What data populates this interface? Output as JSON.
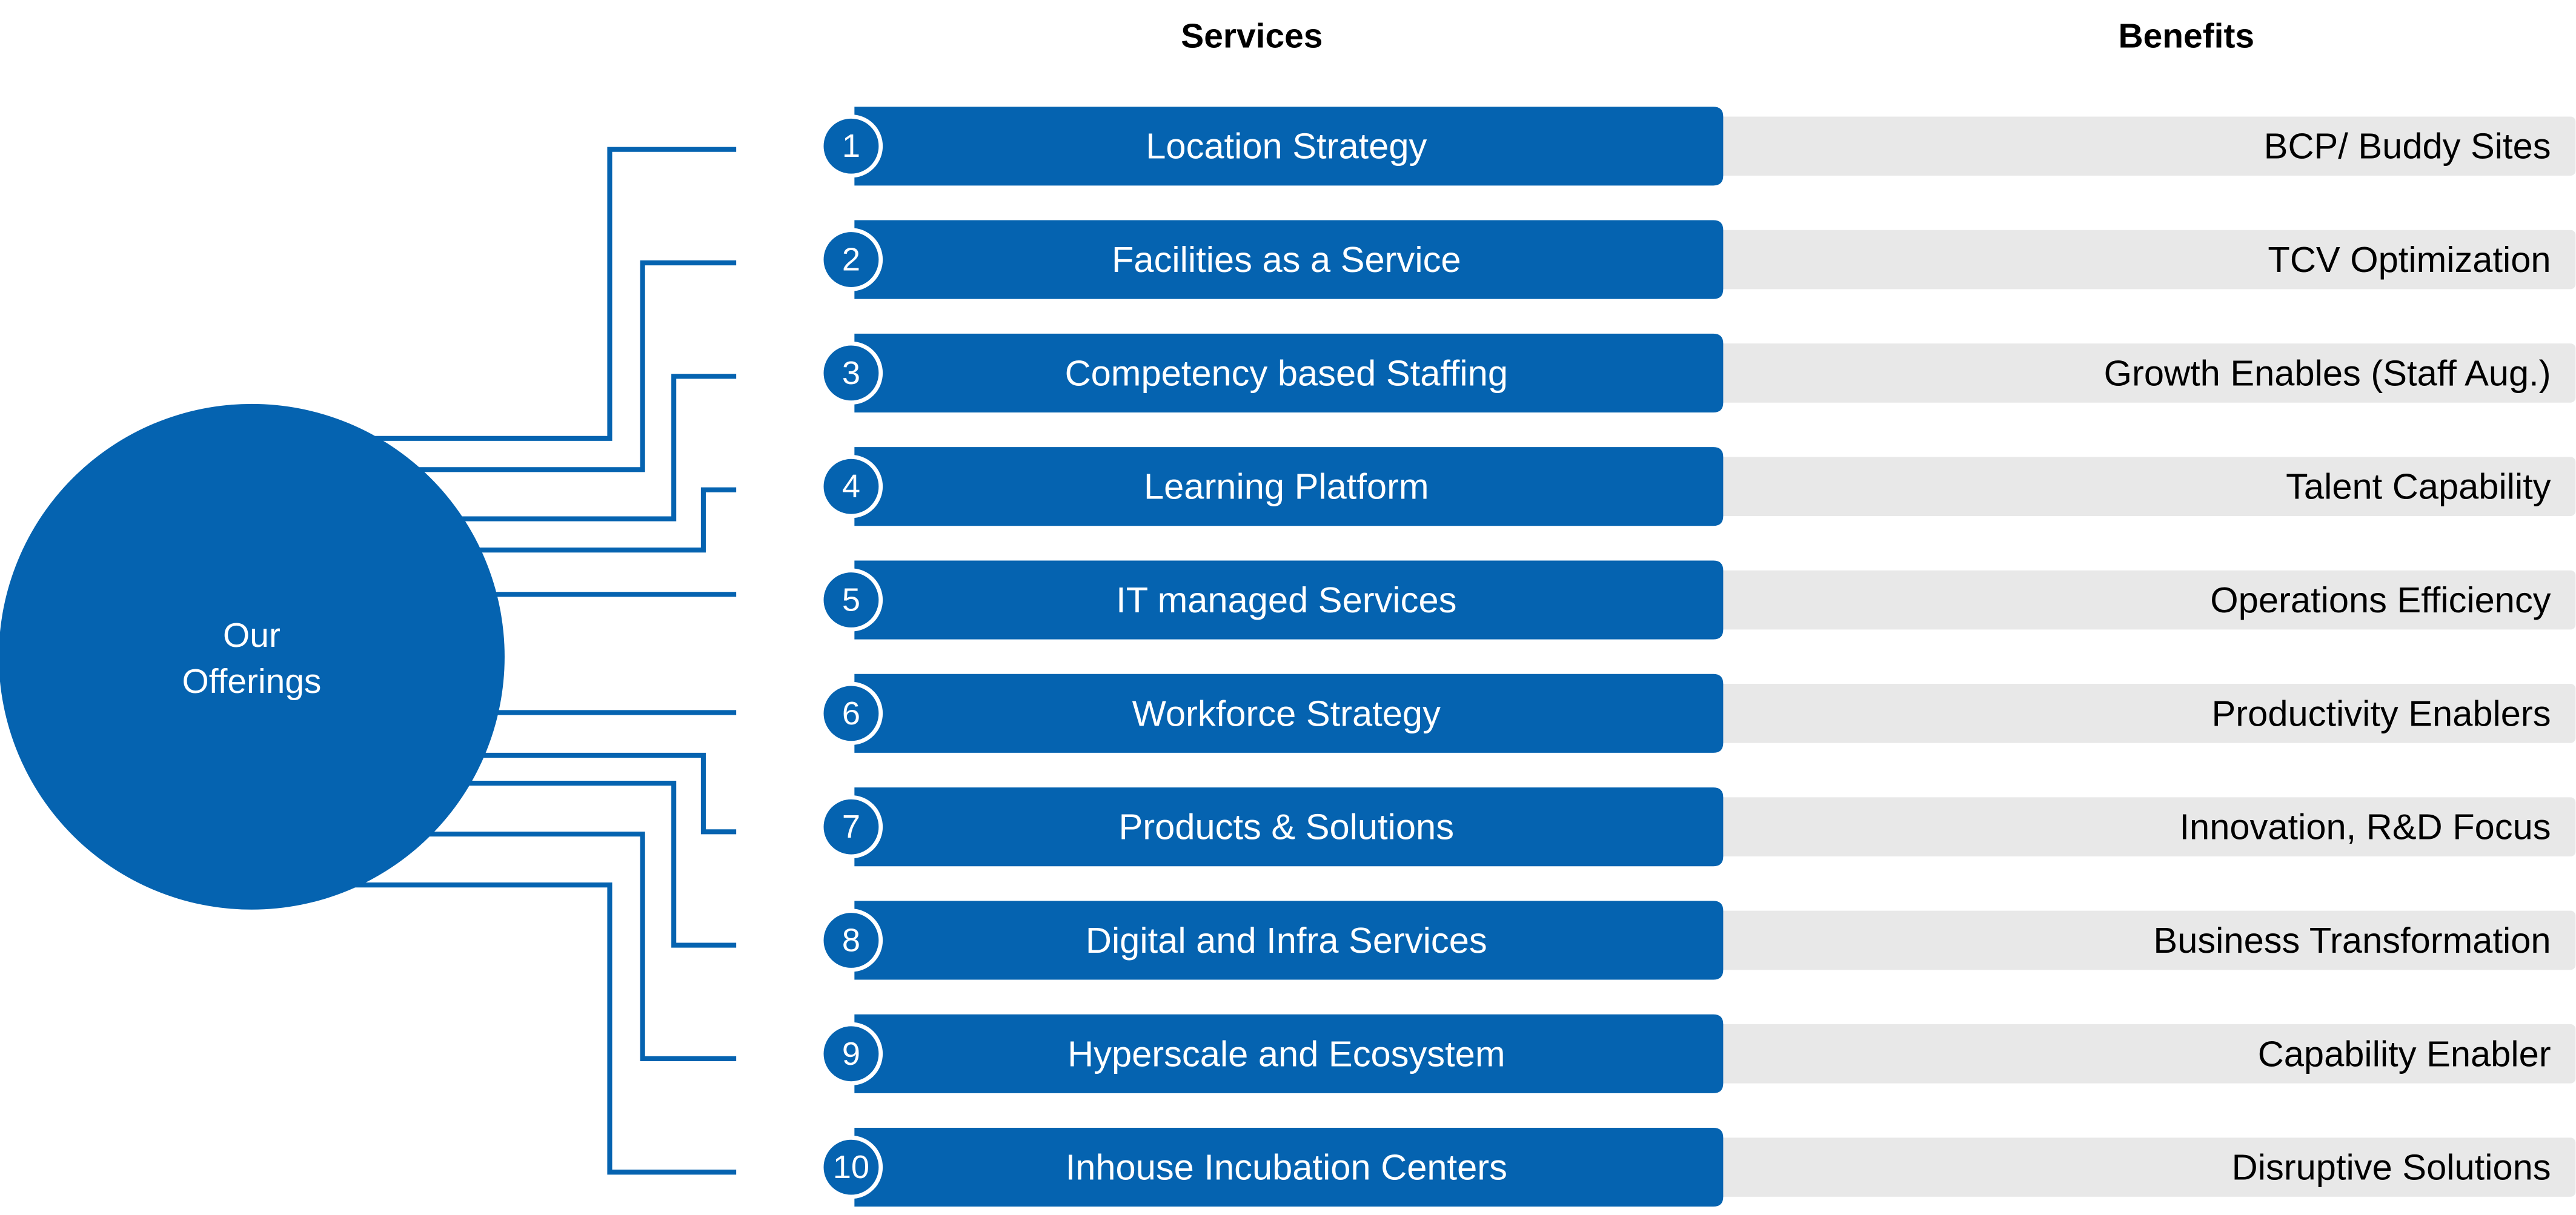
{
  "headers": {
    "services": "Services",
    "benefits": "Benefits"
  },
  "center": {
    "lines": [
      "Our",
      "Offerings"
    ]
  },
  "rows": [
    {
      "number": 1,
      "service": "Location Strategy",
      "benefit": "BCP/ Buddy Sites"
    },
    {
      "number": 2,
      "service": "Facilities as a Service",
      "benefit": "TCV Optimization"
    },
    {
      "number": 3,
      "service": "Competency based Staffing",
      "benefit": "Growth Enables (Staff Aug.)"
    },
    {
      "number": 4,
      "service": "Learning Platform",
      "benefit": "Talent Capability"
    },
    {
      "number": 5,
      "service": "IT managed Services",
      "benefit": "Operations Efficiency"
    },
    {
      "number": 6,
      "service": "Workforce Strategy",
      "benefit": "Productivity Enablers"
    },
    {
      "number": 7,
      "service": "Products & Solutions",
      "benefit": "Innovation, R&D Focus"
    },
    {
      "number": 8,
      "service": "Digital and Infra Services",
      "benefit": "Business Transformation"
    },
    {
      "number": 9,
      "service": "Hyperscale and Ecosystem",
      "benefit": "Capability Enabler"
    },
    {
      "number": 10,
      "service": "Inhouse Incubation Centers",
      "benefit": "Disruptive Solutions"
    }
  ]
}
